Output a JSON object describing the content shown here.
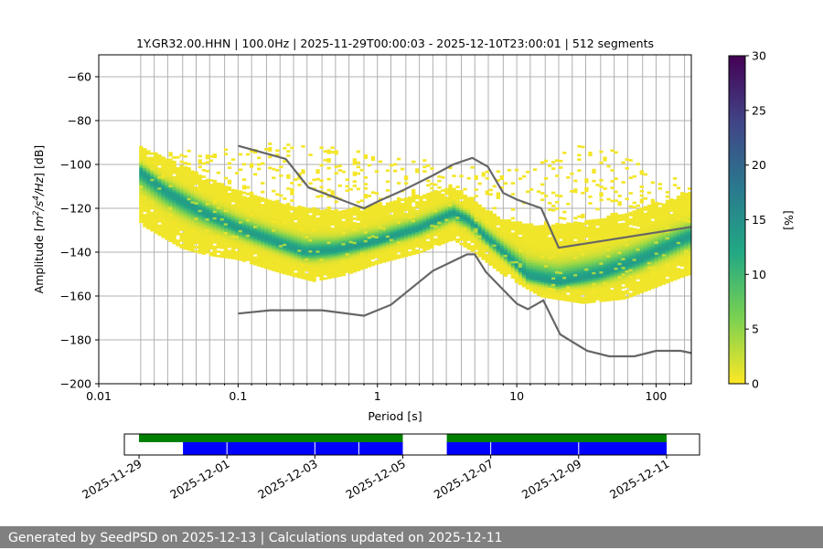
{
  "title": "1Y.GR32.00.HHN | 100.0Hz | 2025-11-29T00:00:03 - 2025-12-10T23:00:01 | 512 segments",
  "footer": "Generated by SeedPSD on 2025-12-13 | Calculations updated on 2025-12-11",
  "colors": {
    "model": "#666666",
    "available": "#008000",
    "used": "#0000ff",
    "grid": "#b0b0b0"
  },
  "chart_data": [
    {
      "type": "heatmap",
      "title": "1Y.GR32.00.HHN | 100.0Hz | 2025-11-29T00:00:03 - 2025-12-10T23:00:01 | 512 segments",
      "xlabel": "Period [s]",
      "ylabel_parts": [
        "Amplitude [",
        "m",
        "2",
        "/s",
        "4",
        "/Hz",
        "] [dB]"
      ],
      "xscale": "log",
      "xlim": [
        0.01,
        179
      ],
      "ylim": [
        -200,
        -50
      ],
      "xticks": [
        {
          "v": 0.01,
          "l": "0.01"
        },
        {
          "v": 0.1,
          "l": "0.1"
        },
        {
          "v": 1,
          "l": "1"
        },
        {
          "v": 10,
          "l": "10"
        },
        {
          "v": 100,
          "l": "100"
        }
      ],
      "yticks": [
        {
          "v": -60,
          "l": "−60"
        },
        {
          "v": -80,
          "l": "−80"
        },
        {
          "v": -100,
          "l": "−100"
        },
        {
          "v": -120,
          "l": "−120"
        },
        {
          "v": -140,
          "l": "−140"
        },
        {
          "v": -160,
          "l": "−160"
        },
        {
          "v": -180,
          "l": "−180"
        },
        {
          "v": -200,
          "l": "−200"
        }
      ],
      "grid_periods": [
        0.02,
        0.025,
        0.03125,
        0.04,
        0.05,
        0.0625,
        0.08,
        0.1,
        0.125,
        0.16,
        0.2,
        0.25,
        0.3125,
        0.4,
        0.5,
        0.625,
        0.8,
        1,
        1.25,
        1.6,
        2,
        2.5,
        3.125,
        4,
        5,
        6.25,
        8,
        10,
        12.5,
        16,
        20,
        25,
        31.25,
        40,
        50,
        62.5,
        80,
        100,
        125,
        160
      ],
      "grid": true,
      "colorbar": {
        "label": "[%]",
        "min": 0,
        "max": 30,
        "ticks": [
          {
            "v": 0,
            "l": "0"
          },
          {
            "v": 5,
            "l": "5"
          },
          {
            "v": 10,
            "l": "10"
          },
          {
            "v": 15,
            "l": "15"
          },
          {
            "v": 20,
            "l": "20"
          },
          {
            "v": 25,
            "l": "25"
          },
          {
            "v": 30,
            "l": "30"
          }
        ]
      },
      "density_ridge": [
        [
          0.02,
          -103
        ],
        [
          0.03,
          -112
        ],
        [
          0.05,
          -120
        ],
        [
          0.1,
          -129
        ],
        [
          0.2,
          -136
        ],
        [
          0.3,
          -140
        ],
        [
          0.5,
          -139
        ],
        [
          1,
          -135
        ],
        [
          2,
          -129
        ],
        [
          3.5,
          -122
        ],
        [
          4.5,
          -125
        ],
        [
          6,
          -133
        ],
        [
          8,
          -140
        ],
        [
          12,
          -151
        ],
        [
          20,
          -154
        ],
        [
          40,
          -150
        ],
        [
          80,
          -143
        ],
        [
          170,
          -133
        ]
      ],
      "band_upper": [
        [
          0.02,
          -92
        ],
        [
          0.04,
          -100
        ],
        [
          0.06,
          -106
        ],
        [
          0.1,
          -112
        ],
        [
          0.2,
          -118
        ],
        [
          0.5,
          -121
        ],
        [
          1,
          -118
        ],
        [
          2,
          -114
        ],
        [
          3.5,
          -110
        ],
        [
          5,
          -117
        ],
        [
          8,
          -125
        ],
        [
          15,
          -128
        ],
        [
          30,
          -126
        ],
        [
          60,
          -122
        ],
        [
          170,
          -113
        ]
      ],
      "band_lower": [
        [
          0.02,
          -127
        ],
        [
          0.04,
          -138
        ],
        [
          0.06,
          -141
        ],
        [
          0.1,
          -143
        ],
        [
          0.2,
          -149
        ],
        [
          0.35,
          -153
        ],
        [
          0.6,
          -150
        ],
        [
          1,
          -145
        ],
        [
          2,
          -140
        ],
        [
          3.5,
          -134
        ],
        [
          5,
          -140
        ],
        [
          8,
          -150
        ],
        [
          15,
          -160
        ],
        [
          30,
          -163
        ],
        [
          60,
          -161
        ],
        [
          170,
          -150
        ]
      ],
      "sparse_upper": [
        [
          0.1,
          -94
        ],
        [
          0.2,
          -90
        ],
        [
          0.4,
          -91
        ],
        [
          0.8,
          -95
        ],
        [
          1.5,
          -98
        ],
        [
          3,
          -100
        ],
        [
          6,
          -102
        ],
        [
          12,
          -103
        ],
        [
          20,
          -94
        ],
        [
          35,
          -91
        ],
        [
          60,
          -96
        ],
        [
          100,
          -104
        ],
        [
          170,
          -108
        ]
      ],
      "series": [
        {
          "name": "",
          "x": [
            0.1,
            0.22,
            0.32,
            0.8,
            1.0,
            1.5,
            2.5,
            3.5,
            4.8,
            6.2,
            8,
            10,
            15,
            20,
            179
          ],
          "y": [
            -91.5,
            -97.5,
            -110.5,
            -120,
            -117,
            -112,
            -105,
            -100,
            -97,
            -101,
            -113,
            -116,
            -120,
            -138,
            -128.5
          ]
        },
        {
          "name": "",
          "x": [
            0.1,
            0.17,
            0.4,
            0.8,
            1.25,
            2.5,
            4.4,
            5.0,
            6.0,
            10,
            12,
            15.5,
            20.5,
            32,
            46,
            70,
            100,
            150,
            179
          ],
          "y": [
            -168,
            -166.5,
            -166.5,
            -169,
            -164,
            -148.5,
            -141,
            -141,
            -149,
            -163.5,
            -166,
            -162,
            -177.5,
            -185,
            -187.5,
            -187.5,
            -185,
            -185,
            -186
          ]
        }
      ]
    },
    {
      "type": "bar",
      "name": "data-coverage",
      "xticks": [
        "2025-11-29",
        "2025-12-01",
        "2025-12-03",
        "2025-12-05",
        "2025-12-07",
        "2025-12-09",
        "2025-12-11"
      ],
      "xlim": [
        "2025-11-28T16:00",
        "2025-12-11T18:00"
      ],
      "available": [
        [
          "2025-11-29T00:00",
          "2025-12-05T00:00"
        ],
        [
          "2025-12-06T00:00",
          "2025-12-11T00:00"
        ]
      ],
      "used": [
        [
          "2025-11-30T00:00",
          "2025-12-01T00:00"
        ],
        [
          "2025-12-01T00:00",
          "2025-12-03T00:00"
        ],
        [
          "2025-12-03T00:00",
          "2025-12-04T00:00"
        ],
        [
          "2025-12-04T00:00",
          "2025-12-05T00:00"
        ],
        [
          "2025-12-06T00:00",
          "2025-12-07T00:00"
        ],
        [
          "2025-12-07T00:00",
          "2025-12-09T00:00"
        ],
        [
          "2025-12-09T00:00",
          "2025-12-11T00:00"
        ]
      ]
    }
  ]
}
